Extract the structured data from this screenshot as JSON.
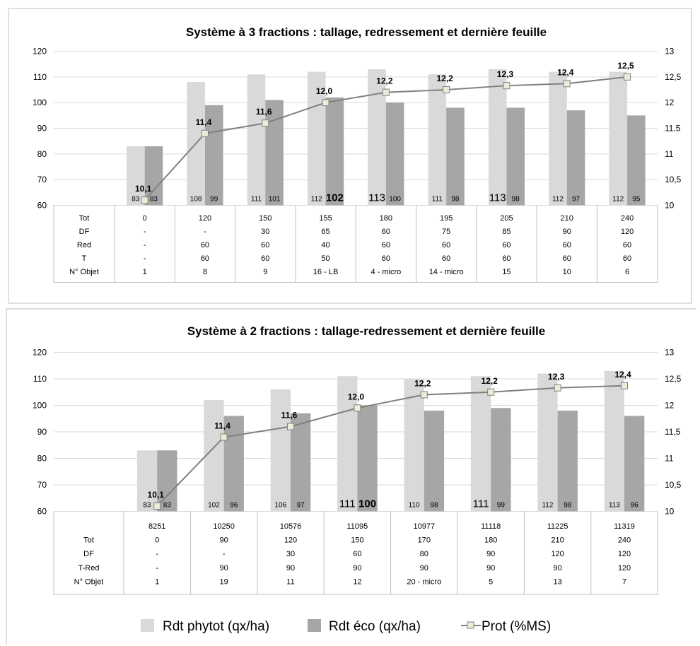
{
  "colors": {
    "phytot": "#d9d9d9",
    "eco": "#a6a6a6",
    "prot_line": "#808080",
    "prot_marker_fill": "#eeecd6",
    "grid": "#d9d9d9"
  },
  "legend": {
    "position": "bottom",
    "items": [
      {
        "label": "Rdt  phytot (qx/ha)",
        "icon": "light-gray-square"
      },
      {
        "label": "Rdt éco (qx/ha)",
        "icon": "dark-gray-square"
      },
      {
        "label": "Prot (%MS)",
        "icon": "line-square-marker"
      }
    ]
  },
  "chart_data": [
    {
      "type": "bar",
      "title": "Système à 3 fractions : tallage, redressement et dernière feuille",
      "ylim": [
        60,
        120
      ],
      "yticks": [
        "120",
        "110",
        "100",
        "90",
        "80",
        "70",
        "60"
      ],
      "y2lim": [
        10,
        13
      ],
      "y2ticks": [
        "13",
        "12,5",
        "12",
        "11,5",
        "11",
        "10,5",
        "10"
      ],
      "grid": true,
      "categories": [
        "",
        "",
        "",
        "",
        "",
        "",
        "",
        "",
        ""
      ],
      "series": [
        {
          "name": "Rdt  phytot (qx/ha)",
          "values": [
            83,
            108,
            111,
            112,
            113,
            111,
            113,
            112,
            112
          ],
          "labels": [
            "83",
            "108",
            "111",
            "112",
            "113",
            "111",
            "113",
            "112",
            "112"
          ]
        },
        {
          "name": "Rdt éco (qx/ha)",
          "values": [
            83,
            99,
            101,
            102,
            100,
            98,
            98,
            97,
            95
          ],
          "labels": [
            "83",
            "99",
            "101",
            "102",
            "100",
            "98",
            "98",
            "97",
            "95"
          ]
        },
        {
          "name": "Prot (%MS)",
          "axis": "right",
          "values": [
            10.1,
            11.4,
            11.6,
            12.0,
            12.2,
            12.25,
            12.33,
            12.37,
            12.5
          ],
          "labels": [
            "10,1",
            "11,4",
            "11,6",
            "12,0",
            "12,2",
            "12,2",
            "12,3",
            "12,4",
            "12,5"
          ]
        }
      ],
      "big_labels": [
        {
          "series": 1,
          "index": 3,
          "bold": true
        },
        {
          "series": 0,
          "index": 4
        },
        {
          "series": 0,
          "index": 6
        }
      ],
      "table": [
        {
          "header": "Tot",
          "cells": [
            "0",
            "120",
            "150",
            "155",
            "180",
            "195",
            "205",
            "210",
            "240"
          ]
        },
        {
          "header": "DF",
          "cells": [
            "-",
            "-",
            "30",
            "65",
            "60",
            "75",
            "85",
            "90",
            "120"
          ]
        },
        {
          "header": "Red",
          "cells": [
            "-",
            "60",
            "60",
            "40",
            "60",
            "60",
            "60",
            "60",
            "60"
          ]
        },
        {
          "header": "T",
          "cells": [
            "-",
            "60",
            "60",
            "50",
            "60",
            "60",
            "60",
            "60",
            "60"
          ]
        },
        {
          "header": "N° Objet",
          "cells": [
            "1",
            "8",
            "9",
            "16 - LB",
            "4 - micro",
            "14 - micro",
            "15",
            "10",
            "6"
          ]
        }
      ]
    },
    {
      "type": "bar",
      "title": "Système à 2 fractions : tallage-redressement et dernière feuille",
      "ylim": [
        60,
        120
      ],
      "yticks": [
        "120",
        "110",
        "100",
        "90",
        "80",
        "70",
        "60"
      ],
      "y2lim": [
        10,
        13
      ],
      "y2ticks": [
        "13",
        "12,5",
        "12",
        "11,5",
        "11",
        "10,5",
        "10"
      ],
      "grid": true,
      "categories": [
        "8251",
        "10250",
        "10576",
        "11095",
        "10977",
        "11118",
        "11225",
        "11319"
      ],
      "series": [
        {
          "name": "Rdt  phytot (qx/ha)",
          "values": [
            83,
            102,
            106,
            111,
            110,
            111,
            112,
            113
          ],
          "labels": [
            "83",
            "102",
            "106",
            "111",
            "110",
            "111",
            "112",
            "113"
          ]
        },
        {
          "name": "Rdt éco (qx/ha)",
          "values": [
            83,
            96,
            97,
            100,
            98,
            99,
            98,
            96
          ],
          "labels": [
            "83",
            "96",
            "97",
            "100",
            "98",
            "99",
            "98",
            "96"
          ]
        },
        {
          "name": "Prot (%MS)",
          "axis": "right",
          "values": [
            10.1,
            11.4,
            11.6,
            11.95,
            12.2,
            12.25,
            12.33,
            12.37
          ],
          "labels": [
            "10,1",
            "11,4",
            "11,6",
            "12,0",
            "12,2",
            "12,2",
            "12,3",
            "12,4"
          ]
        }
      ],
      "big_labels": [
        {
          "series": 0,
          "index": 3
        },
        {
          "series": 1,
          "index": 3,
          "bold": true
        },
        {
          "series": 0,
          "index": 5
        }
      ],
      "table": [
        {
          "header": "Tot",
          "cells": [
            "0",
            "90",
            "120",
            "150",
            "170",
            "180",
            "210",
            "240"
          ]
        },
        {
          "header": "DF",
          "cells": [
            "-",
            "-",
            "30",
            "60",
            "80",
            "90",
            "120",
            "120"
          ]
        },
        {
          "header": "T-Red",
          "cells": [
            "-",
            "90",
            "90",
            "90",
            "90",
            "90",
            "90",
            "120"
          ]
        },
        {
          "header": "N° Objet",
          "cells": [
            "1",
            "19",
            "11",
            "12",
            "20 - micro",
            "5",
            "13",
            "7"
          ]
        }
      ]
    }
  ]
}
